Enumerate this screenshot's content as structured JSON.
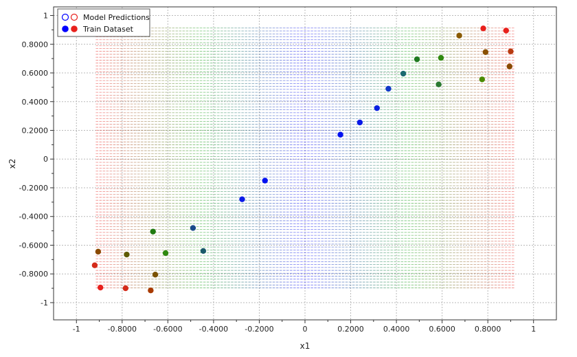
{
  "chart_data": {
    "type": "scatter",
    "xlabel": "x1",
    "ylabel": "x2",
    "xlim": [
      -1.1,
      1.1
    ],
    "ylim": [
      -1.12,
      1.06
    ],
    "grid": true,
    "legend_position": "top-left",
    "x_ticks": [
      {
        "value": -1,
        "label": "-1"
      },
      {
        "value": -0.8,
        "label": "-0.8000"
      },
      {
        "value": -0.6,
        "label": "-0.6000"
      },
      {
        "value": -0.4,
        "label": "-0.4000"
      },
      {
        "value": -0.2,
        "label": "-0.2000"
      },
      {
        "value": 0,
        "label": "0"
      },
      {
        "value": 0.2,
        "label": "0.2000"
      },
      {
        "value": 0.4,
        "label": "0.4000"
      },
      {
        "value": 0.6,
        "label": "0.6000"
      },
      {
        "value": 0.8,
        "label": "0.8000"
      },
      {
        "value": 1,
        "label": "1"
      }
    ],
    "y_ticks": [
      {
        "value": 1,
        "label": "1"
      },
      {
        "value": 0.8,
        "label": "0.8000"
      },
      {
        "value": 0.6,
        "label": "0.6000"
      },
      {
        "value": 0.4,
        "label": "0.4000"
      },
      {
        "value": 0.2,
        "label": "0.2000"
      },
      {
        "value": 0,
        "label": "0"
      },
      {
        "value": -0.2,
        "label": "-0.2000"
      },
      {
        "value": -0.4,
        "label": "-0.4000"
      },
      {
        "value": -0.6,
        "label": "-0.6000"
      },
      {
        "value": -0.8,
        "label": "-0.8000"
      },
      {
        "value": -1,
        "label": "-1"
      }
    ],
    "series": [
      {
        "name": "Model Predictions",
        "marker": "hollow-circle",
        "colors": [
          "#0000ff",
          "#e8201c"
        ],
        "grid": {
          "x_from": -0.91,
          "x_to": 0.91,
          "y_from": -0.905,
          "y_to": 0.905,
          "x_count": 121,
          "y_count": 90
        },
        "color_rule": "blue where |x1| is small (near 0), green in between, red where |x1| is large (near ±0.9)"
      },
      {
        "name": "Train Dataset",
        "marker": "filled-circle",
        "colors": [
          "#0000ff",
          "#e8201c"
        ],
        "points": [
          {
            "x": -0.92,
            "y": -0.74,
            "color": "#d42a1a"
          },
          {
            "x": -0.905,
            "y": -0.645,
            "color": "#8a4a00"
          },
          {
            "x": -0.895,
            "y": -0.895,
            "color": "#e8201c"
          },
          {
            "x": -0.785,
            "y": -0.9,
            "color": "#d42a1a"
          },
          {
            "x": -0.78,
            "y": -0.665,
            "color": "#5f5a00"
          },
          {
            "x": -0.675,
            "y": -0.915,
            "color": "#a83a00"
          },
          {
            "x": -0.665,
            "y": -0.505,
            "color": "#1f7a10"
          },
          {
            "x": -0.655,
            "y": -0.805,
            "color": "#7a5200"
          },
          {
            "x": -0.61,
            "y": -0.655,
            "color": "#2f8a10"
          },
          {
            "x": -0.49,
            "y": -0.48,
            "color": "#1a4a8a"
          },
          {
            "x": -0.445,
            "y": -0.64,
            "color": "#1a5a6a"
          },
          {
            "x": -0.275,
            "y": -0.28,
            "color": "#0a1ae8"
          },
          {
            "x": -0.175,
            "y": -0.15,
            "color": "#0010f0"
          },
          {
            "x": 0.155,
            "y": 0.17,
            "color": "#0010f0"
          },
          {
            "x": 0.24,
            "y": 0.255,
            "color": "#0a18e8"
          },
          {
            "x": 0.315,
            "y": 0.355,
            "color": "#0a20e0"
          },
          {
            "x": 0.365,
            "y": 0.49,
            "color": "#1038c8"
          },
          {
            "x": 0.43,
            "y": 0.595,
            "color": "#1a6a70"
          },
          {
            "x": 0.49,
            "y": 0.695,
            "color": "#1f7a20"
          },
          {
            "x": 0.585,
            "y": 0.52,
            "color": "#2a7a30"
          },
          {
            "x": 0.595,
            "y": 0.705,
            "color": "#2f8a10"
          },
          {
            "x": 0.675,
            "y": 0.86,
            "color": "#8a5a00"
          },
          {
            "x": 0.775,
            "y": 0.555,
            "color": "#4a8a00"
          },
          {
            "x": 0.78,
            "y": 0.91,
            "color": "#e8201c"
          },
          {
            "x": 0.79,
            "y": 0.745,
            "color": "#8a5000"
          },
          {
            "x": 0.88,
            "y": 0.895,
            "color": "#e8201c"
          },
          {
            "x": 0.895,
            "y": 0.645,
            "color": "#8a4a00"
          },
          {
            "x": 0.9,
            "y": 0.75,
            "color": "#b83a10"
          }
        ]
      }
    ]
  }
}
